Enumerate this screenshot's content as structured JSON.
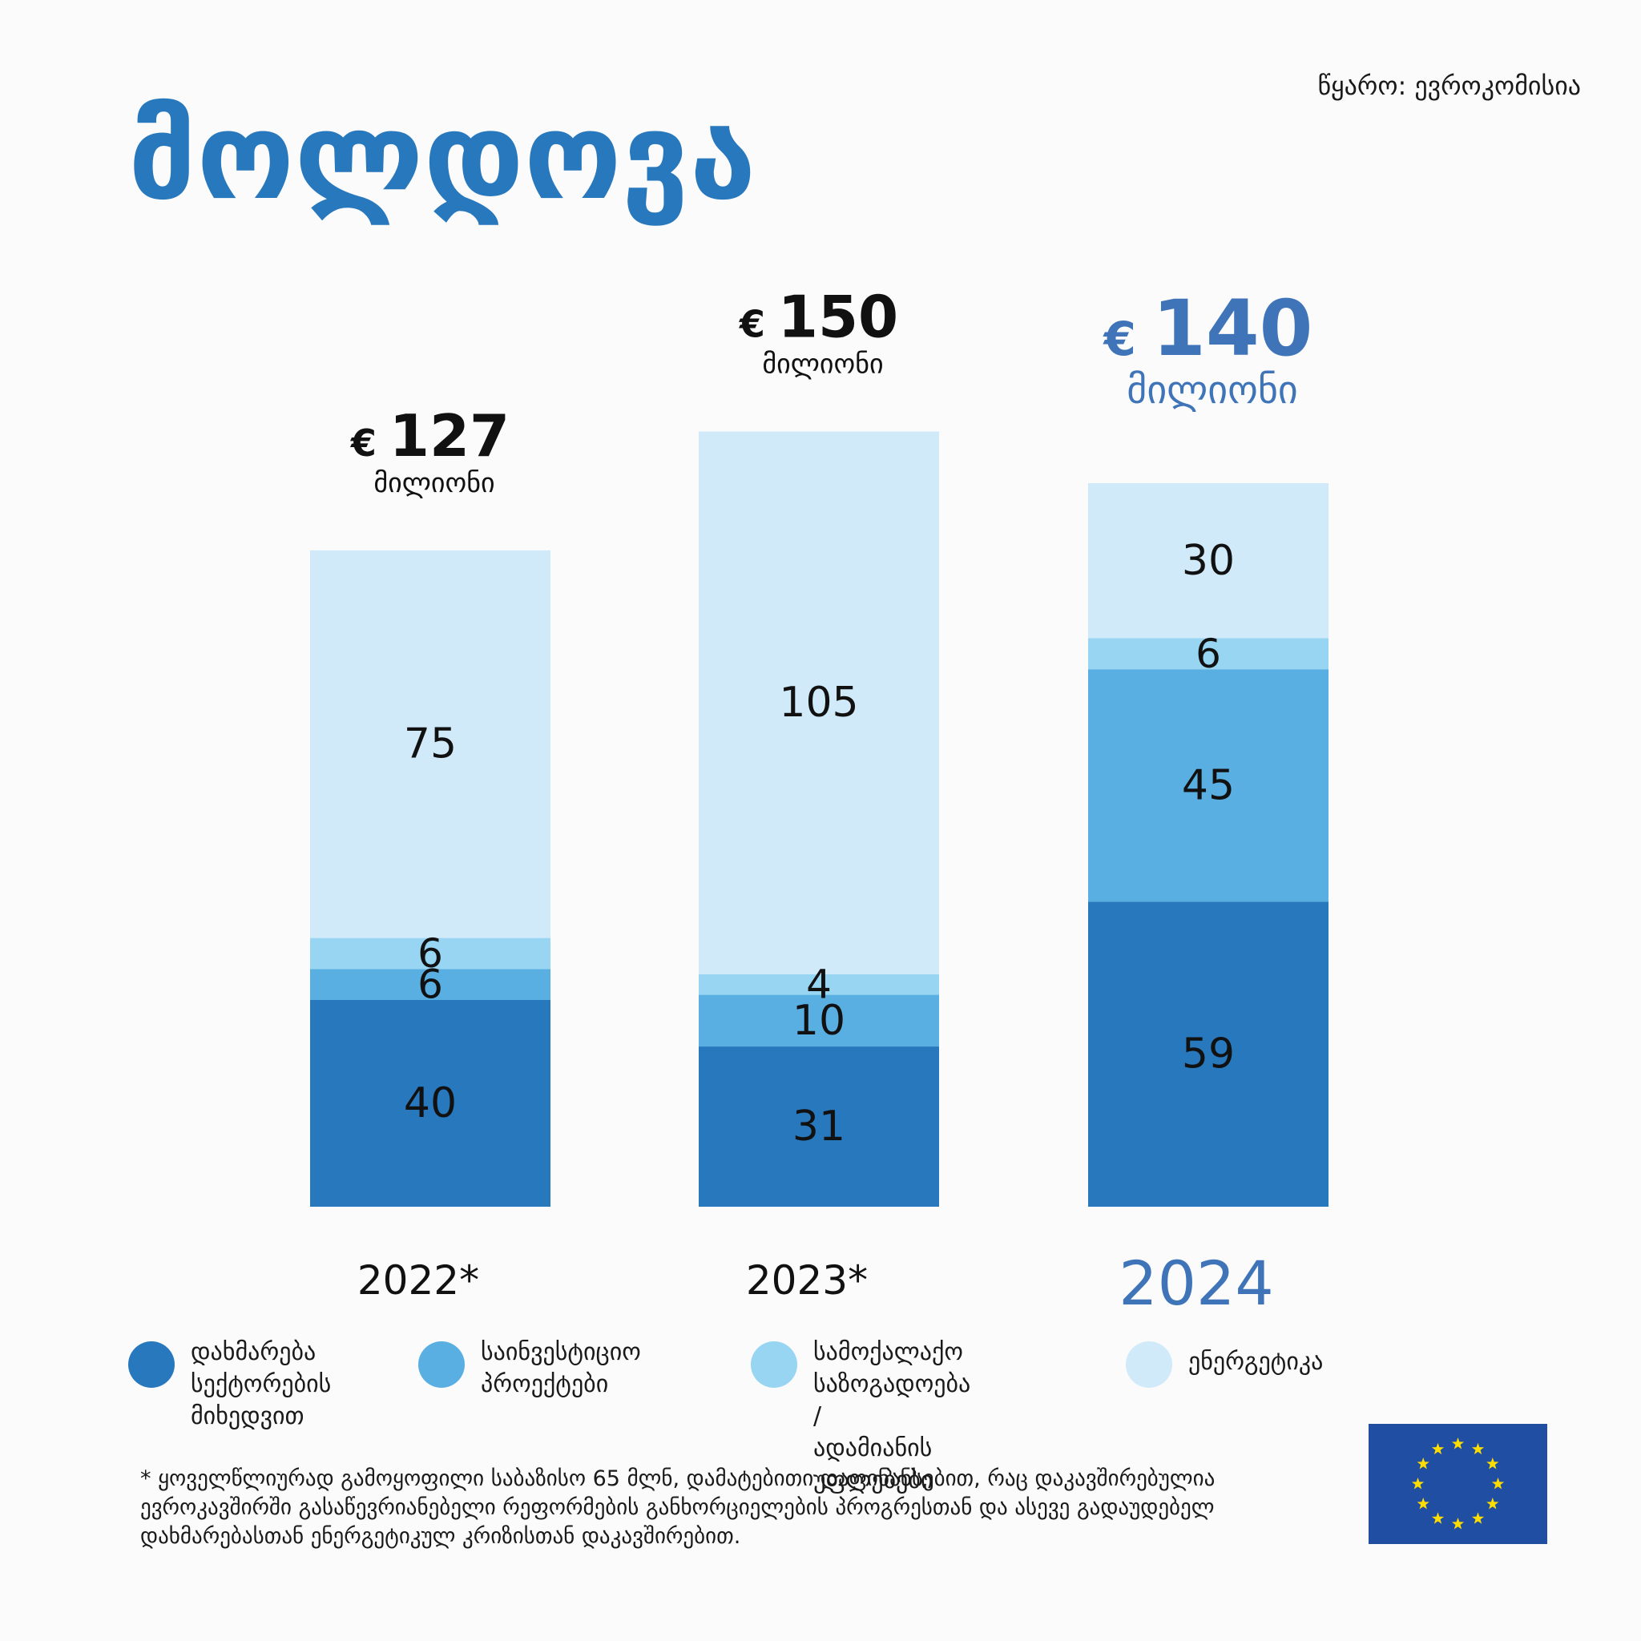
{
  "source": "წყარო: ევროკომისია",
  "title": "მოლდოვა",
  "colors": {
    "sector_support": "#2878be",
    "investment": "#59afe2",
    "civil_society": "#97d5f3",
    "energy": "#d0eaf9",
    "accent_text": "#3f74b8",
    "flag_blue": "#1f4ea3",
    "flag_star": "#ffdd00"
  },
  "chart_data": {
    "type": "bar",
    "stacked": true,
    "categories": [
      "2022*",
      "2023*",
      "2024"
    ],
    "series": [
      {
        "name": "დახმარება სექტორების მიხედვით",
        "values": [
          40,
          31,
          59
        ]
      },
      {
        "name": "საინვესტიციო პროექტები",
        "values": [
          6,
          10,
          45
        ]
      },
      {
        "name": "სამოქალაქო საზოგადოება / ადამიანის უფლებები",
        "values": [
          6,
          4,
          6
        ]
      },
      {
        "name": "ენერგეტიკა",
        "values": [
          75,
          105,
          30
        ]
      }
    ],
    "totals": [
      {
        "currency": "€",
        "amount": "127",
        "unit": "მილიონი"
      },
      {
        "currency": "€",
        "amount": "150",
        "unit": "მილიონი"
      },
      {
        "currency": "€",
        "amount": "140",
        "unit": "მილიონი"
      }
    ],
    "legend_position": "bottom"
  },
  "legend": [
    {
      "label": "დახმარება\nსექტორების\nმიხედვით"
    },
    {
      "label": "საინვესტიციო\nპროექტები"
    },
    {
      "label": "სამოქალაქო\nსაზოგადოება /\nადამიანის უფლებები"
    },
    {
      "label": "ენერგეტიკა"
    }
  ],
  "footnote": "* ყოველწლიურად გამოყოფილი საბაზისო 65 მლნ, დამატებითი დაფინანსებით, რაც დაკავშირებულია ევროკავშირში გასაწევრიანებელი რეფორმების განხორციელების პროგრესთან და ასევე გადაუდებელ დახმარებასთან ენერგეტიკულ კრიზისთან დაკავშირებით."
}
